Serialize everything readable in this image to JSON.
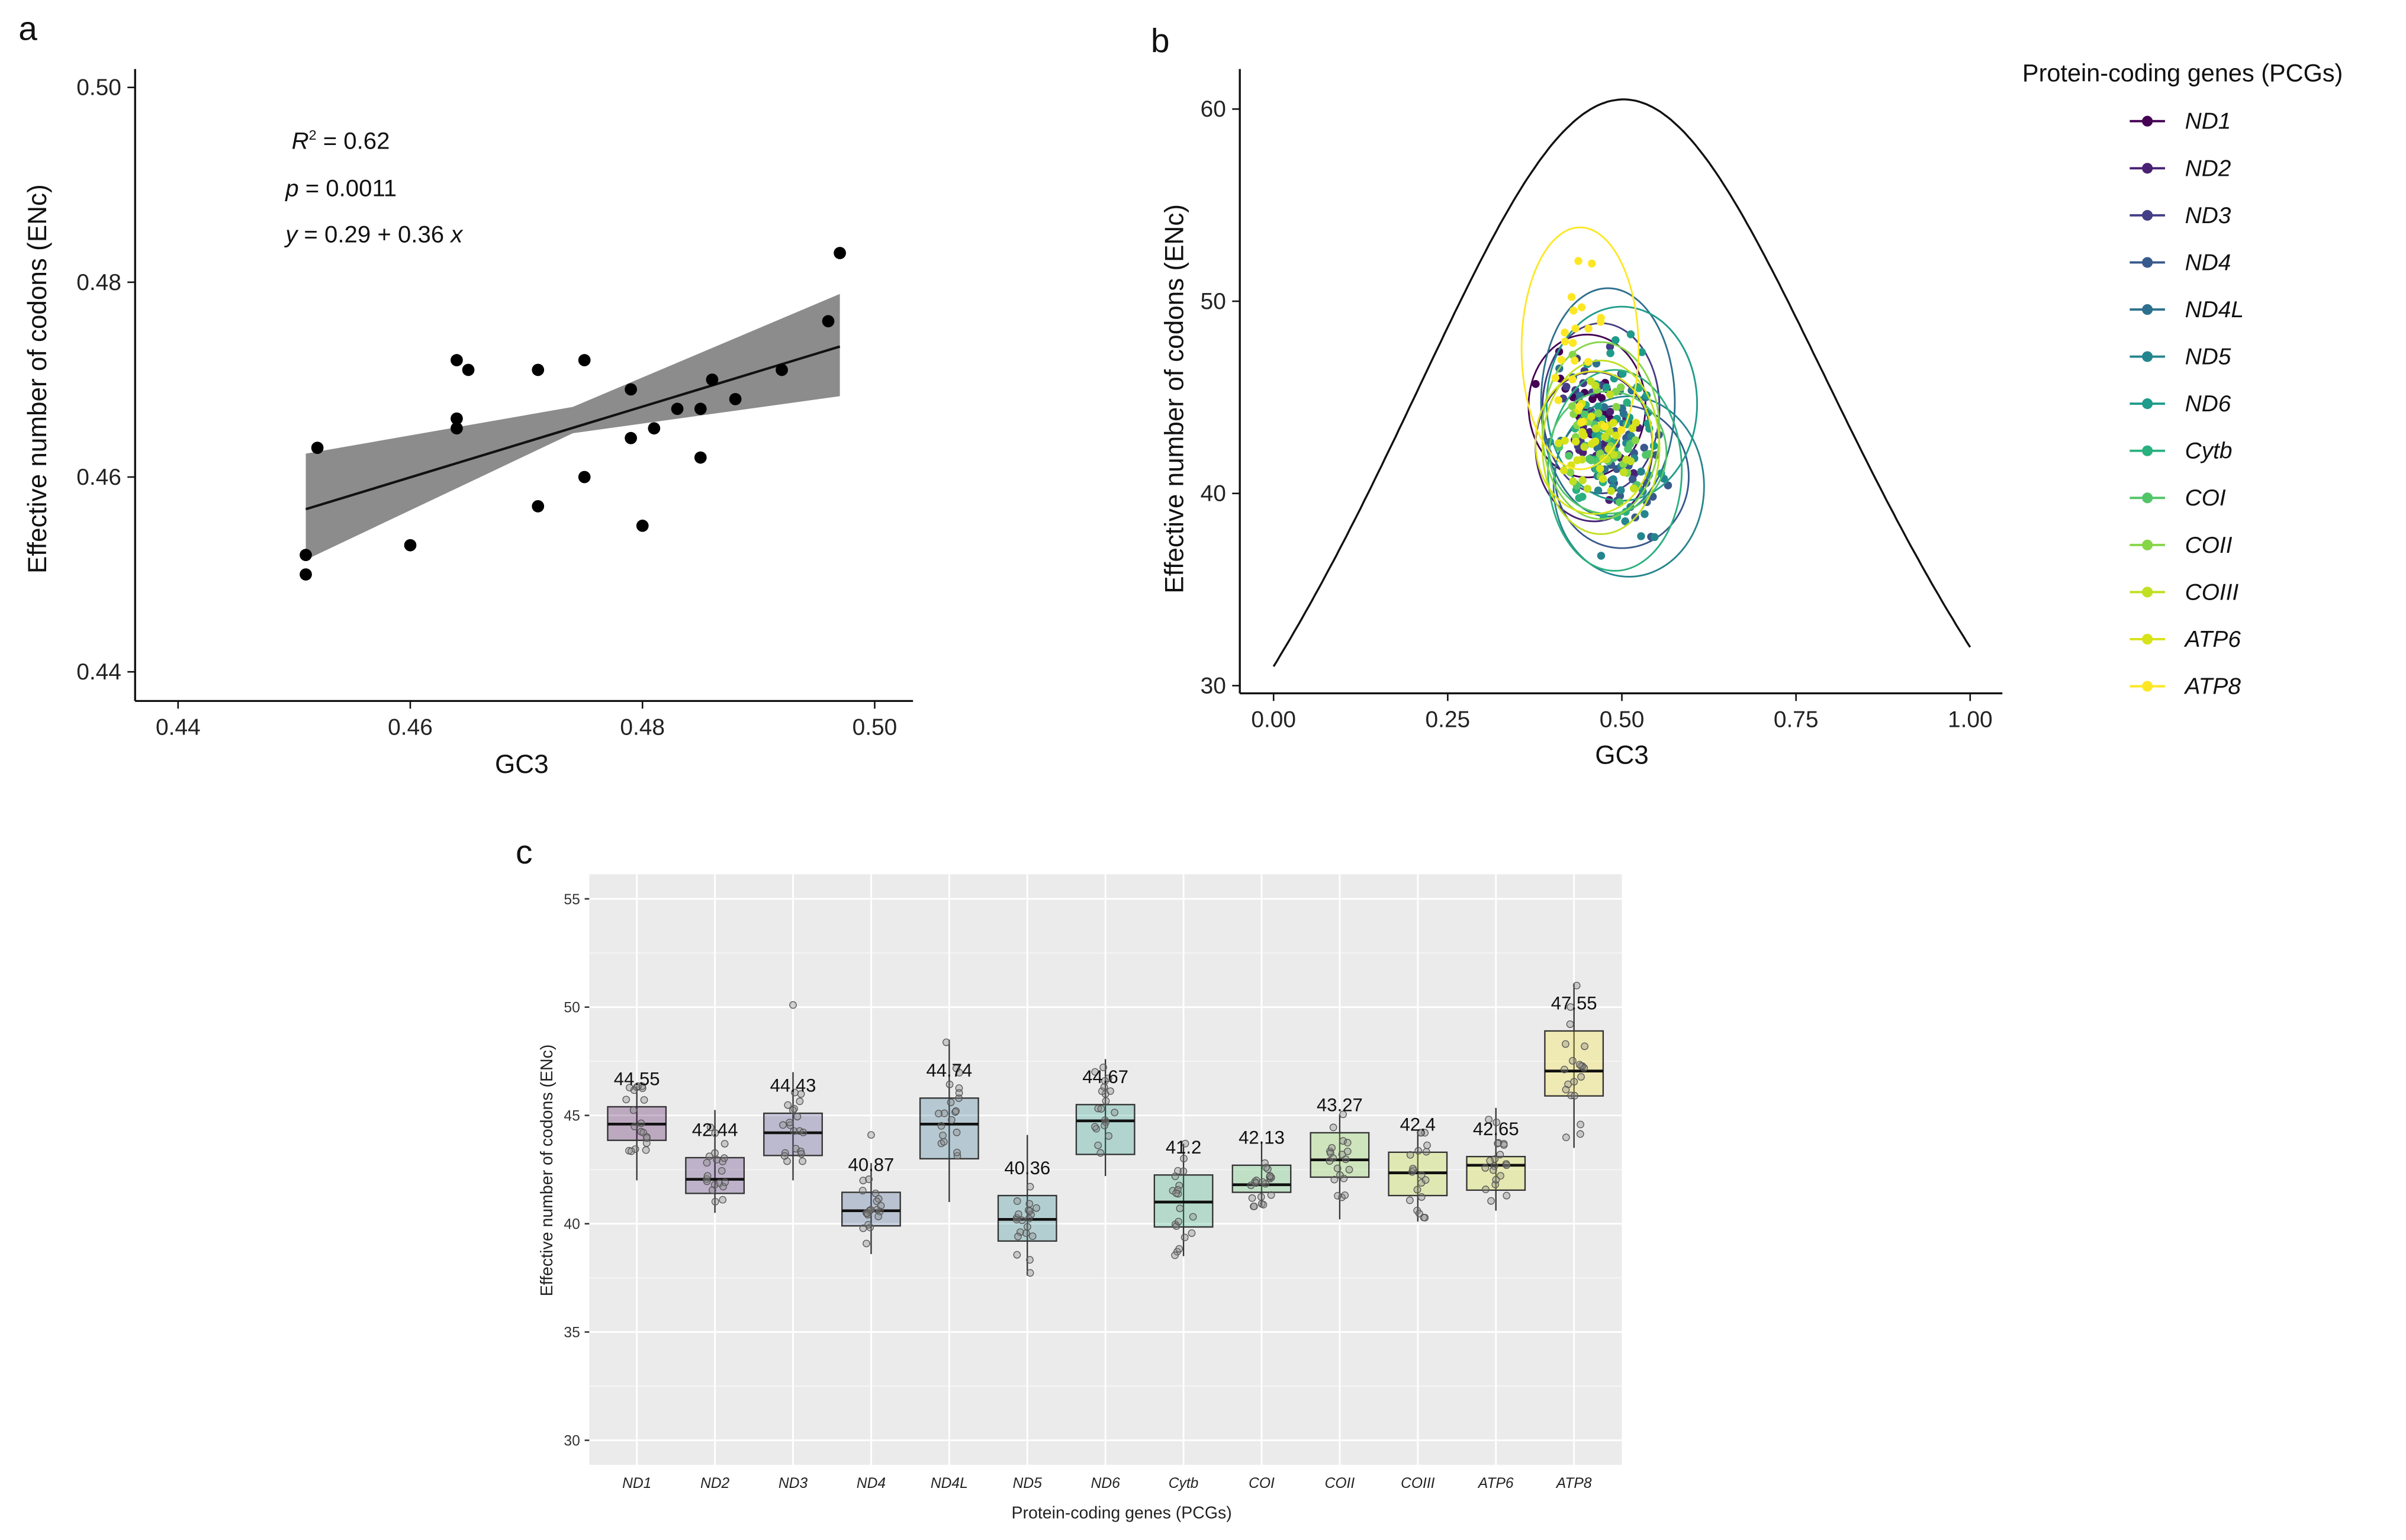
{
  "chart_data": [
    {
      "panel_label": "a",
      "type": "scatter",
      "xlabel": "GC3",
      "ylabel": "Effective number of codons (ENc)",
      "xlim": [
        0.436,
        0.503
      ],
      "ylim": [
        0.4355,
        0.5035
      ],
      "xticks": [
        "0.44",
        "0.46",
        "0.48",
        "0.50"
      ],
      "yticks": [
        "0.44",
        "0.46",
        "0.48",
        "0.50"
      ],
      "grid": false,
      "points": [
        [
          0.451,
          0.452
        ],
        [
          0.451,
          0.45
        ],
        [
          0.452,
          0.463
        ],
        [
          0.46,
          0.453
        ],
        [
          0.464,
          0.472
        ],
        [
          0.465,
          0.471
        ],
        [
          0.464,
          0.466
        ],
        [
          0.464,
          0.465
        ],
        [
          0.471,
          0.471
        ],
        [
          0.471,
          0.457
        ],
        [
          0.475,
          0.472
        ],
        [
          0.475,
          0.46
        ],
        [
          0.479,
          0.469
        ],
        [
          0.479,
          0.464
        ],
        [
          0.48,
          0.455
        ],
        [
          0.481,
          0.465
        ],
        [
          0.483,
          0.467
        ],
        [
          0.485,
          0.467
        ],
        [
          0.485,
          0.462
        ],
        [
          0.486,
          0.47
        ],
        [
          0.488,
          0.468
        ],
        [
          0.492,
          0.471
        ],
        [
          0.496,
          0.476
        ],
        [
          0.497,
          0.483
        ]
      ],
      "fit": {
        "x_range": [
          0.451,
          0.497
        ],
        "y_at_ends": [
          0.4567,
          0.4734
        ]
      },
      "ci_band": {
        "x": [
          0.451,
          0.474,
          0.497
        ],
        "lower": [
          0.4515,
          0.4645,
          0.4683
        ],
        "upper": [
          0.4624,
          0.4672,
          0.4788
        ]
      },
      "annotations": {
        "r2_var": "R",
        "r2_sup": "2",
        "r2_rest": " = 0.62",
        "p_var": "p",
        "p_rest": " = 0.0011",
        "eq_var": "y",
        "eq_rest": " = 0.29 + 0.36 ",
        "eq_x": "x"
      }
    },
    {
      "panel_label": "b",
      "type": "scatter",
      "xlabel": "GC3",
      "ylabel": "Effective number of codons (ENc)",
      "xlim": [
        -0.05,
        1.05
      ],
      "ylim": [
        29.5,
        62
      ],
      "xticks": [
        "0.00",
        "0.25",
        "0.50",
        "0.75",
        "1.00"
      ],
      "yticks": [
        "30",
        "40",
        "50",
        "60"
      ],
      "expected_curve": "ENc = 2 + GC3 + 29 / (GC3^2 + (1 - GC3)^2)",
      "legend": {
        "title": "Protein-coding genes (PCGs)",
        "position": "right",
        "items": [
          "ND1",
          "ND2",
          "ND3",
          "ND4",
          "ND4L",
          "ND5",
          "ND6",
          "Cytb",
          "COI",
          "COII",
          "COIII",
          "ATP6",
          "ATP8"
        ]
      },
      "colors": [
        "#440154",
        "#482173",
        "#433e85",
        "#38598c",
        "#2d708e",
        "#25858e",
        "#1e9b8a",
        "#2ab07f",
        "#52c569",
        "#86d549",
        "#c2df23",
        "#d8e219",
        "#fde725"
      ],
      "gene_gc3_center": [
        0.45,
        0.46,
        0.47,
        0.5,
        0.48,
        0.51,
        0.5,
        0.49,
        0.48,
        0.47,
        0.47,
        0.46,
        0.44
      ],
      "gene_gc3_spread": [
        0.035,
        0.035,
        0.035,
        0.04,
        0.04,
        0.045,
        0.045,
        0.04,
        0.035,
        0.035,
        0.035,
        0.035,
        0.035
      ]
    },
    {
      "panel_label": "c",
      "type": "box",
      "xlabel": "Protein-coding genes (PCGs)",
      "ylabel": "Effective number of codons (ENc)",
      "ylim": [
        28.9,
        56.1
      ],
      "yticks": [
        "30",
        "35",
        "40",
        "45",
        "50",
        "55"
      ],
      "categories": [
        "ND1",
        "ND2",
        "ND3",
        "ND4",
        "ND4L",
        "ND5",
        "ND6",
        "Cytb",
        "COI",
        "COII",
        "COIII",
        "ATP6",
        "ATP8"
      ],
      "mean_labels": [
        "44.55",
        "42.44",
        "44.43",
        "40.87",
        "44.74",
        "40.36",
        "44.67",
        "41.2",
        "42.13",
        "43.27",
        "42.4",
        "42.65",
        "47.55"
      ],
      "means": [
        44.55,
        42.44,
        44.43,
        40.87,
        44.74,
        40.36,
        44.67,
        41.2,
        42.13,
        43.27,
        42.4,
        42.65,
        47.55
      ],
      "q1": [
        43.85,
        41.4,
        43.15,
        39.9,
        43.0,
        39.2,
        43.2,
        39.85,
        41.45,
        42.15,
        41.3,
        41.55,
        45.9
      ],
      "median": [
        44.6,
        42.05,
        44.2,
        40.6,
        44.6,
        40.2,
        44.75,
        41.0,
        41.8,
        42.95,
        42.35,
        42.7,
        47.05
      ],
      "q3": [
        45.4,
        43.05,
        45.1,
        41.45,
        45.8,
        41.3,
        45.5,
        42.25,
        42.7,
        44.2,
        43.3,
        43.1,
        48.9
      ],
      "whisker_low": [
        42.0,
        40.5,
        42.0,
        38.6,
        41.0,
        37.6,
        42.2,
        38.5,
        40.8,
        40.2,
        40.1,
        40.6,
        43.5
      ],
      "whisker_high": [
        46.35,
        45.25,
        47.0,
        42.8,
        48.5,
        44.1,
        47.6,
        43.7,
        43.8,
        45.05,
        44.2,
        45.35,
        51.1
      ],
      "outliers": [
        [],
        [],
        [
          50.1
        ],
        [
          44.1
        ],
        [],
        [],
        [],
        [],
        [],
        [],
        [],
        [],
        []
      ]
    }
  ]
}
